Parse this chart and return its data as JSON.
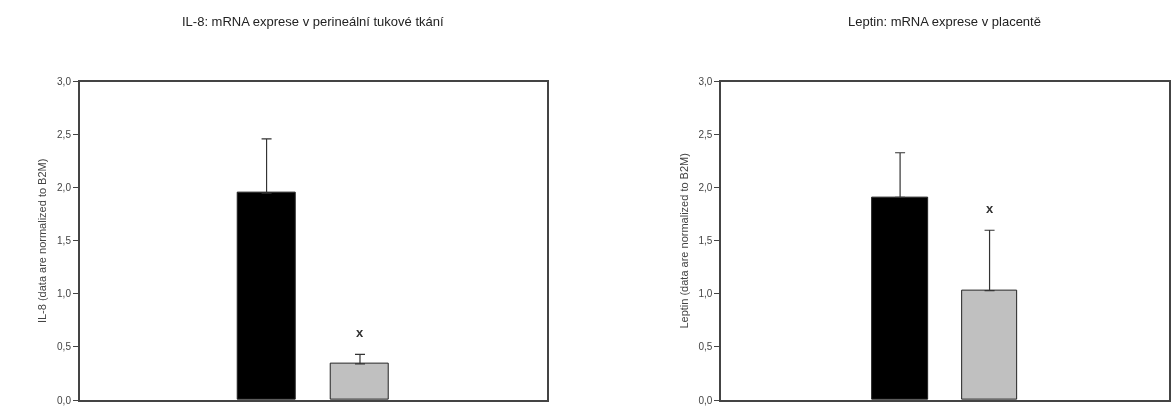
{
  "chart_data": [
    {
      "type": "bar",
      "title": "IL-8: mRNA exprese v perineální tukové tkání",
      "ylabel": "IL-8 (data are normalized to B2M)",
      "categories": [
        null,
        null
      ],
      "values": [
        1.95,
        0.34
      ],
      "colors": [
        "#000000",
        "#c0c0c0"
      ],
      "errors": [
        [
          1.95,
          2.46
        ],
        [
          0.34,
          0.43
        ]
      ],
      "ylim": [
        0,
        3
      ],
      "yticks": [
        {
          "value": 0,
          "label": "0,0"
        },
        {
          "value": 0.5,
          "label": "0,5"
        },
        {
          "value": 1,
          "label": "1,0"
        },
        {
          "value": 1.5,
          "label": "1,5"
        },
        {
          "value": 2,
          "label": "2,0"
        },
        {
          "value": 2.5,
          "label": "2,5"
        },
        {
          "value": 3,
          "label": "3,0"
        }
      ],
      "annotations": [
        "x"
      ]
    },
    {
      "type": "bar",
      "title": "Leptin: mRNA exprese v placentě",
      "ylabel": "Leptin (data are normalized to B2M)",
      "categories": [
        null,
        null
      ],
      "values": [
        1.91,
        1.03
      ],
      "colors": [
        "#000000",
        "#c0c0c0"
      ],
      "errors": [
        [
          1.91,
          2.33
        ],
        [
          1.03,
          1.6
        ]
      ],
      "ylim": [
        0,
        3
      ],
      "yticks": [
        {
          "value": 0,
          "label": "0,0"
        },
        {
          "value": 0.5,
          "label": "0,5"
        },
        {
          "value": 1,
          "label": "1,0"
        },
        {
          "value": 1.5,
          "label": "1,5"
        },
        {
          "value": 2,
          "label": "2,0"
        },
        {
          "value": 2.5,
          "label": "2,5"
        },
        {
          "value": 3,
          "label": "3,0"
        }
      ],
      "annotations": [
        "x"
      ]
    }
  ]
}
